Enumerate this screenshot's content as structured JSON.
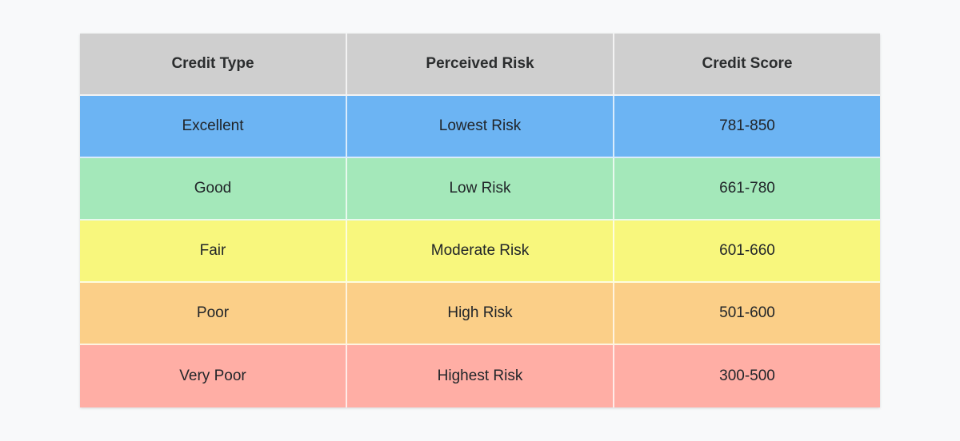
{
  "chart_data": {
    "type": "table",
    "columns": [
      "Credit Type",
      "Perceived Risk",
      "Credit Score"
    ],
    "rows": [
      [
        "Excellent",
        "Lowest Risk",
        "781-850"
      ],
      [
        "Good",
        "Low Risk",
        "661-780"
      ],
      [
        "Fair",
        "Moderate Risk",
        "601-660"
      ],
      [
        "Poor",
        "High Risk",
        "501-600"
      ],
      [
        "Very Poor",
        "Highest Risk",
        "300-500"
      ]
    ],
    "header_color": "#cfcfcf",
    "row_colors": [
      "#6cb4f3",
      "#a4e8ba",
      "#f8f77d",
      "#fbcf88",
      "#ffaea5"
    ],
    "page_background": "#f8f9fa",
    "layout": "3 equal columns, header row + 5 data rows, equal heights, centered text, thin white cell dividers"
  }
}
